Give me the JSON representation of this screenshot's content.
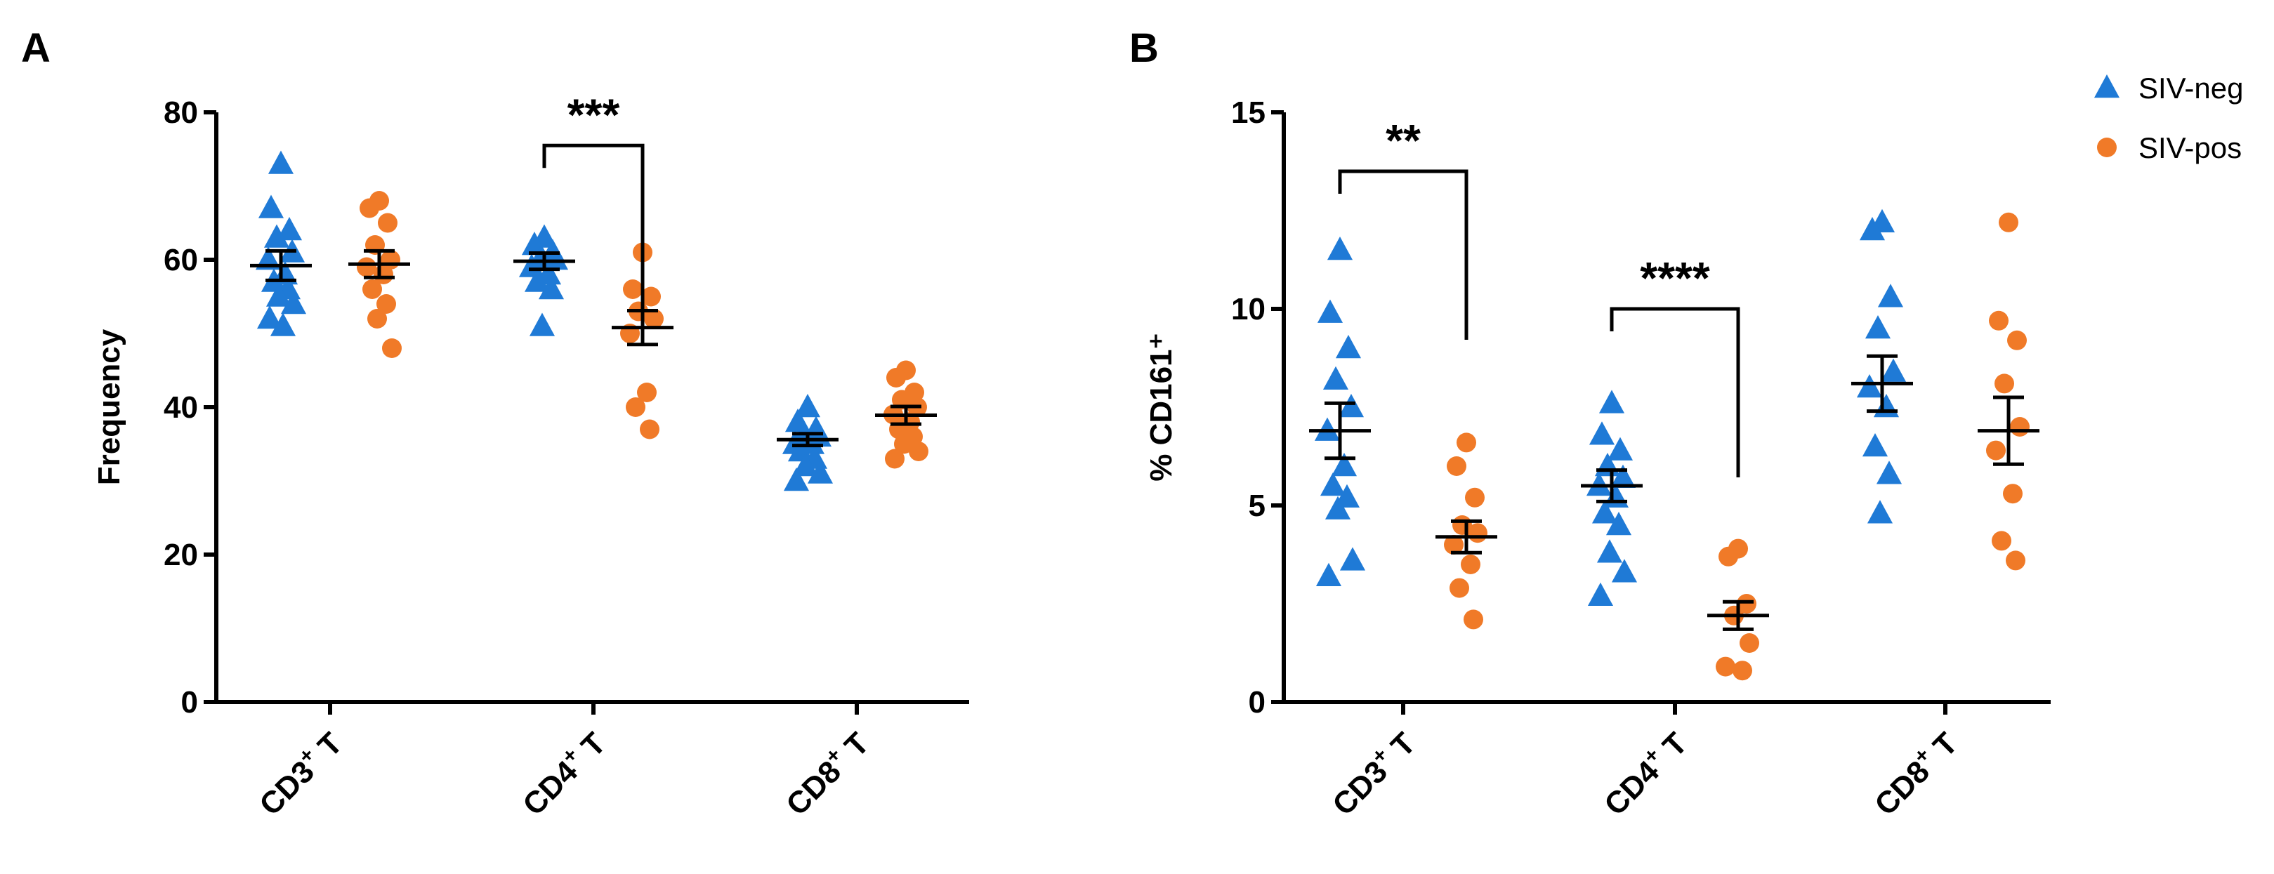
{
  "chart_data": [
    {
      "type": "scatter",
      "panel": "A",
      "ylabel": "Frequency",
      "ylim": [
        0,
        80
      ],
      "yticks": [
        0,
        20,
        40,
        60,
        80
      ],
      "categories": [
        {
          "base": "CD3",
          "sup": "+",
          "tail": " T"
        },
        {
          "base": "CD4",
          "sup": "+",
          "tail": " T"
        },
        {
          "base": "CD8",
          "sup": "+",
          "tail": " T"
        }
      ],
      "series": [
        {
          "name": "SIV-neg",
          "marker": "triangle",
          "color": "#1f7ad6",
          "points": [
            [
              73,
              67,
              64,
              63,
              61,
              60,
              58,
              57,
              56,
              55,
              54,
              52,
              51
            ],
            [
              63,
              62,
              61,
              60,
              60,
              59,
              58,
              57,
              56,
              51
            ],
            [
              40,
              38,
              37,
              36,
              36,
              35,
              35,
              34,
              33,
              32,
              31,
              30
            ]
          ],
          "means": [
            59.2,
            59.8,
            35.6
          ],
          "sem": [
            2.0,
            1.1,
            0.8
          ]
        },
        {
          "name": "SIV-pos",
          "marker": "circle",
          "color": "#f07a28",
          "points": [
            [
              68,
              67,
              65,
              62,
              60,
              59,
              58,
              56,
              54,
              52,
              48
            ],
            [
              61,
              56,
              55,
              53,
              52,
              50,
              42,
              40,
              37
            ],
            [
              45,
              44,
              42,
              41,
              40,
              39,
              38,
              37,
              36,
              35,
              34,
              33
            ]
          ],
          "means": [
            59.4,
            50.8,
            38.9
          ],
          "sem": [
            1.8,
            2.3,
            1.2
          ]
        }
      ],
      "significance": [
        {
          "category_index": 1,
          "label": "***",
          "y": 75.5
        }
      ]
    },
    {
      "type": "scatter",
      "panel": "B",
      "ylabel": "% CD161⁺",
      "ylim": [
        0,
        15
      ],
      "yticks": [
        0,
        5,
        10,
        15
      ],
      "categories": [
        {
          "base": "CD3",
          "sup": "+",
          "tail": " T"
        },
        {
          "base": "CD4",
          "sup": "+",
          "tail": " T"
        },
        {
          "base": "CD8",
          "sup": "+",
          "tail": " T"
        }
      ],
      "series": [
        {
          "name": "SIV-neg",
          "marker": "triangle",
          "color": "#1f7ad6",
          "points": [
            [
              11.5,
              9.9,
              9.0,
              8.2,
              7.5,
              6.9,
              6.0,
              5.5,
              5.2,
              4.9,
              3.6,
              3.2
            ],
            [
              7.6,
              6.8,
              6.4,
              6.0,
              5.7,
              5.5,
              5.2,
              4.8,
              4.5,
              3.8,
              3.3,
              2.7
            ],
            [
              12.2,
              12.0,
              10.3,
              9.5,
              8.4,
              8.0,
              7.5,
              6.5,
              5.8,
              4.8
            ]
          ],
          "means": [
            6.9,
            5.5,
            8.1
          ],
          "sem": [
            0.7,
            0.4,
            0.7
          ]
        },
        {
          "name": "SIV-pos",
          "marker": "circle",
          "color": "#f07a28",
          "points": [
            [
              6.6,
              6.0,
              5.2,
              4.5,
              4.3,
              4.0,
              3.5,
              2.9,
              2.1
            ],
            [
              3.9,
              3.7,
              2.5,
              2.2,
              1.5,
              0.9,
              0.8
            ],
            [
              12.2,
              9.7,
              9.2,
              8.1,
              7.0,
              6.4,
              5.3,
              4.1,
              3.6
            ]
          ],
          "means": [
            4.2,
            2.2,
            6.9
          ],
          "sem": [
            0.4,
            0.35,
            0.85
          ]
        }
      ],
      "significance": [
        {
          "category_index": 0,
          "label": "**",
          "y": 13.5
        },
        {
          "category_index": 1,
          "label": "****",
          "y": 10.0
        }
      ]
    }
  ],
  "legend": {
    "items": [
      {
        "label": "SIV-neg",
        "marker": "triangle",
        "color": "#1f7ad6"
      },
      {
        "label": "SIV-pos",
        "marker": "circle",
        "color": "#f07a28"
      }
    ],
    "position": "top-right"
  }
}
